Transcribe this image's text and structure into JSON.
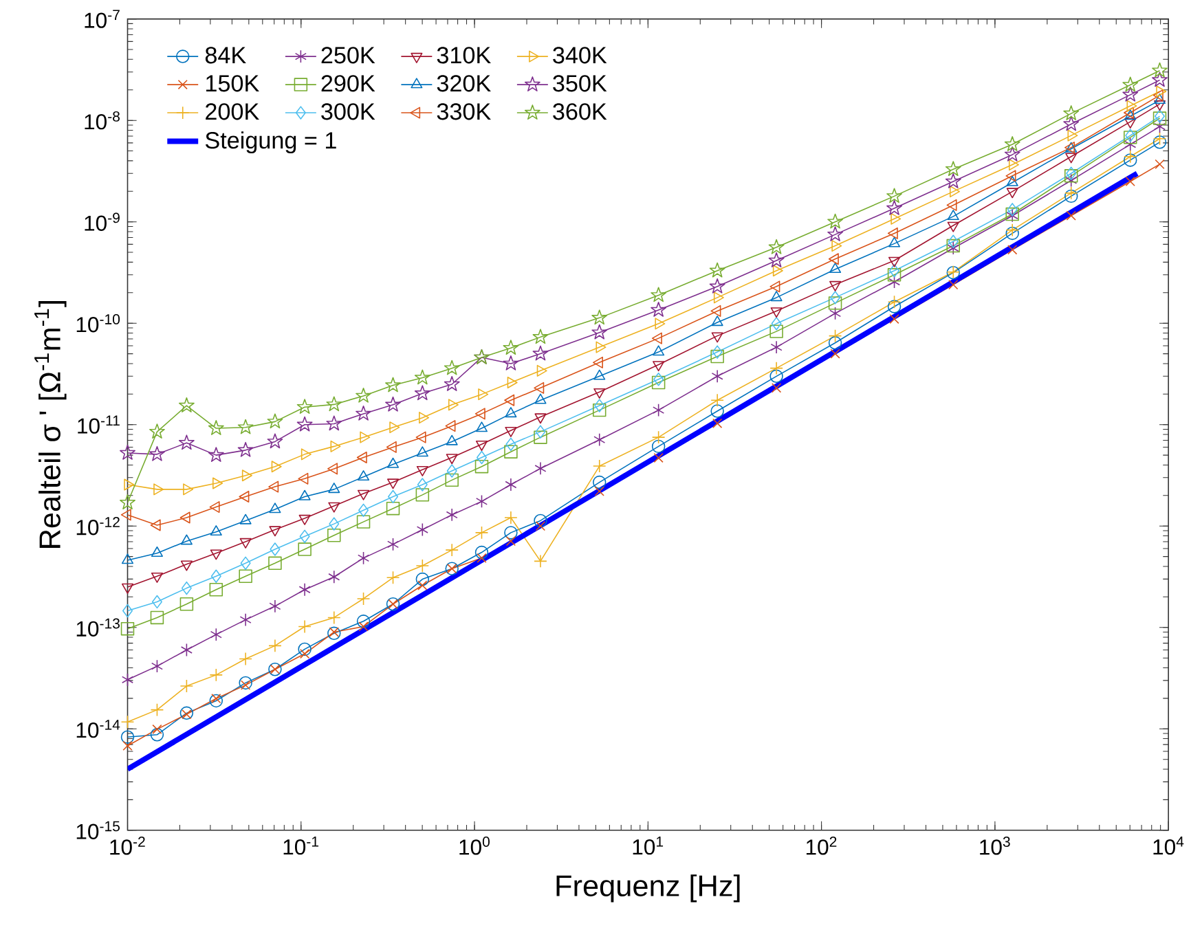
{
  "chart_data": {
    "type": "line",
    "xlabel": "Frequenz [Hz]",
    "ylabel": "Realteil σ ' [Ω$^{-1}$m$^{-1}$]",
    "log": "xy",
    "legend": "top left",
    "grid": false,
    "xlim": [
      0.01,
      10000
    ],
    "ylim": [
      1e-15,
      1e-07
    ],
    "xticks": [
      {
        "value": 0.01,
        "label": "10$^{-2}$"
      },
      {
        "value": 0.1,
        "label": "10$^{-1}$"
      },
      {
        "value": 1,
        "label": "10$^{0}$"
      },
      {
        "value": 10,
        "label": "10$^{1}$"
      },
      {
        "value": 100,
        "label": "10$^{2}$"
      },
      {
        "value": 1000,
        "label": "10$^{3}$"
      },
      {
        "value": 10000,
        "label": "10$^{4}$"
      }
    ],
    "yticks": [
      {
        "value": 1e-15,
        "label": "10$^{-15}$"
      },
      {
        "value": 1e-14,
        "label": "10$^{-14}$"
      },
      {
        "value": 1e-13,
        "label": "10$^{-13}$"
      },
      {
        "value": 1e-12,
        "label": "10$^{-12}$"
      },
      {
        "value": 1e-11,
        "label": "10$^{-11}$"
      },
      {
        "value": 1e-10,
        "label": "10$^{-10}$"
      },
      {
        "value": 1e-09,
        "label": "10$^{-9}$"
      },
      {
        "value": 1e-08,
        "label": "10$^{-8}$"
      },
      {
        "value": 1e-07,
        "label": "10$^{-7}$"
      }
    ],
    "x": [
      0.01,
      0.0148,
      0.0219,
      0.0324,
      0.0479,
      0.0708,
      0.105,
      0.155,
      0.229,
      0.339,
      0.501,
      0.741,
      1.1,
      1.62,
      2.4,
      5.25,
      11.5,
      25.1,
      55.0,
      120,
      263,
      575,
      1260,
      2750,
      6030,
      8910
    ],
    "series": [
      {
        "name": "84K",
        "color": "#0072bd",
        "marker": "circle",
        "values": [
          8.3e-15,
          8.75e-15,
          1.43e-14,
          1.89e-14,
          2.84e-14,
          3.86e-14,
          6.1e-14,
          8.75e-14,
          1.15e-13,
          1.7e-13,
          2.99e-13,
          3.8e-13,
          5.5e-13,
          8.6e-13,
          1.13e-12,
          2.7e-12,
          6.1e-12,
          1.36e-11,
          3e-11,
          6.4e-11,
          1.46e-10,
          3.15e-10,
          7.7e-10,
          1.79e-09,
          4.06e-09,
          6.1e-09
        ]
      },
      {
        "name": "150K",
        "color": "#d95319",
        "marker": "cross",
        "values": [
          6.8e-15,
          9.9e-15,
          1.39e-14,
          1.99e-14,
          2.7e-14,
          3.86e-14,
          5.5e-14,
          9e-14,
          1.02e-13,
          1.7e-13,
          2.6e-13,
          3.8e-13,
          4.83e-13,
          7.1e-13,
          1e-12,
          2.2e-12,
          4.7e-12,
          1.03e-11,
          2.3e-11,
          5e-11,
          1.1e-10,
          2.4e-10,
          5.3e-10,
          1.15e-09,
          2.5e-09,
          3.7e-09
        ]
      },
      {
        "name": "200K",
        "color": "#edb120",
        "marker": "plus",
        "values": [
          1.17e-14,
          1.54e-14,
          2.64e-14,
          3.4e-14,
          4.9e-14,
          6.6e-14,
          1.02e-13,
          1.25e-13,
          1.92e-13,
          3.1e-13,
          4.06e-13,
          5.8e-13,
          8.6e-13,
          1.21e-12,
          4.5e-13,
          3.9e-12,
          7.5e-12,
          1.74e-11,
          3.6e-11,
          7.5e-11,
          1.62e-10,
          3.2e-10,
          8.3e-10,
          1.92e-09,
          4.4e-09,
          6.6e-09
        ]
      },
      {
        "name": "250K",
        "color": "#7e2f8e",
        "marker": "cross",
        "values": [
          3.05e-14,
          4.15e-14,
          6e-14,
          8.5e-14,
          1.19e-13,
          1.62e-13,
          2.36e-13,
          3.15e-13,
          4.83e-13,
          6.6e-13,
          9.2e-13,
          1.29e-12,
          1.75e-12,
          2.56e-12,
          3.7e-12,
          7.1e-12,
          1.39e-11,
          3e-11,
          5.8e-11,
          1.25e-10,
          2.56e-10,
          5.5e-10,
          1.15e-09,
          2.56e-09,
          5.8e-09,
          8.7e-09
        ]
      },
      {
        "name": "290K",
        "color": "#77ac30",
        "marker": "square",
        "values": [
          9.7e-14,
          1.25e-13,
          1.7e-13,
          2.36e-13,
          3.2e-13,
          4.3e-13,
          5.9e-13,
          8.1e-13,
          1.1e-12,
          1.49e-12,
          2.03e-12,
          2.84e-12,
          3.86e-12,
          5.4e-12,
          7.5e-12,
          1.39e-11,
          2.6e-11,
          4.7e-11,
          8.3e-11,
          1.58e-10,
          3e-10,
          5.8e-10,
          1.19e-09,
          2.84e-09,
          6.8e-09,
          1.05e-08
        ]
      },
      {
        "name": "300K",
        "color": "#4dbeee",
        "marker": "diamond",
        "values": [
          1.46e-13,
          1.79e-13,
          2.44e-13,
          3.2e-13,
          4.3e-13,
          5.9e-13,
          7.9e-13,
          1.05e-12,
          1.43e-12,
          1.95e-12,
          2.56e-12,
          3.5e-12,
          4.74e-12,
          6.4e-12,
          8.5e-12,
          1.54e-11,
          2.8e-11,
          5.2e-11,
          9.9e-11,
          1.79e-10,
          3.3e-10,
          6.4e-10,
          1.32e-09,
          3e-09,
          7.1e-09,
          1.1e-08
        ]
      },
      {
        "name": "310K",
        "color": "#a2142f",
        "marker": "triangle-down",
        "values": [
          2.5e-13,
          3.2e-13,
          4.2e-13,
          5.4e-13,
          7e-13,
          9.2e-13,
          1.19e-12,
          1.58e-12,
          2.09e-12,
          2.7e-12,
          3.6e-12,
          4.74e-12,
          6.4e-12,
          8.75e-12,
          1.19e-11,
          2.1e-11,
          3.9e-11,
          7.5e-11,
          1.32e-10,
          2.4e-10,
          4.15e-10,
          9.2e-10,
          1.99e-09,
          4.4e-09,
          9.7e-09,
          1.45e-08
        ]
      },
      {
        "name": "320K",
        "color": "#0072bd",
        "marker": "triangle-up",
        "values": [
          4.6e-13,
          5.4e-13,
          7.1e-13,
          8.75e-13,
          1.13e-12,
          1.46e-12,
          1.95e-12,
          2.3e-12,
          3.05e-12,
          4.06e-12,
          5.25e-12,
          6.8e-12,
          9.2e-12,
          1.28e-11,
          1.74e-11,
          3e-11,
          5.2e-11,
          1.02e-10,
          1.79e-10,
          3.4e-10,
          6.1e-10,
          1.13e-09,
          2.44e-09,
          5.25e-09,
          1.1e-08,
          1.58e-08
        ]
      },
      {
        "name": "330K",
        "color": "#d95319",
        "marker": "triangle-left",
        "values": [
          1.29e-12,
          1.02e-12,
          1.21e-12,
          1.54e-12,
          1.95e-12,
          2.44e-12,
          2.93e-12,
          3.67e-12,
          4.74e-12,
          6e-12,
          7.5e-12,
          9.7e-12,
          1.28e-11,
          1.74e-11,
          2.3e-11,
          4.1e-11,
          7.1e-11,
          1.32e-10,
          2.3e-10,
          4.3e-10,
          7.7e-10,
          1.46e-09,
          2.84e-09,
          5.4e-09,
          1.19e-08,
          1.77e-08
        ]
      },
      {
        "name": "340K",
        "color": "#edb120",
        "marker": "triangle-right",
        "values": [
          2.56e-12,
          2.3e-12,
          2.3e-12,
          2.64e-12,
          3.15e-12,
          3.86e-12,
          5.1e-12,
          6.1e-12,
          7.5e-12,
          9.4e-12,
          1.17e-11,
          1.57e-11,
          1.99e-11,
          2.6e-11,
          3.4e-11,
          5.8e-11,
          9.9e-11,
          1.79e-10,
          3.3e-10,
          5.8e-10,
          1.07e-09,
          1.99e-09,
          3.66e-09,
          7.1e-09,
          1.39e-08,
          1.93e-08
        ]
      },
      {
        "name": "350K",
        "color": "#7e2f8e",
        "marker": "star",
        "values": [
          5.25e-12,
          5.1e-12,
          6.6e-12,
          5e-12,
          5.6e-12,
          6.8e-12,
          1e-11,
          1.02e-11,
          1.28e-11,
          1.57e-11,
          2.03e-11,
          2.5e-11,
          4.6e-11,
          4e-11,
          5e-11,
          8.1e-11,
          1.35e-10,
          2.3e-10,
          4.15e-10,
          7.5e-10,
          1.36e-09,
          2.5e-09,
          4.6e-09,
          9.2e-09,
          1.79e-08,
          2.5e-08
        ]
      },
      {
        "name": "360K",
        "color": "#77ac30",
        "marker": "star",
        "values": [
          1.7e-12,
          8.5e-12,
          1.54e-11,
          9.2e-12,
          9.4e-12,
          1.07e-11,
          1.49e-11,
          1.58e-11,
          1.92e-11,
          2.44e-11,
          2.9e-11,
          3.6e-11,
          4.6e-11,
          5.7e-11,
          7.3e-11,
          1.13e-10,
          1.89e-10,
          3.3e-10,
          5.6e-10,
          1e-09,
          1.79e-09,
          3.3e-09,
          5.8e-09,
          1.17e-08,
          2.24e-08,
          3.1e-08
        ]
      },
      {
        "name": "Steigung = 1",
        "color": "#0000ff",
        "marker": "none",
        "x": [
          0.01,
          6600
        ],
        "values": [
          4e-15,
          3e-09
        ]
      }
    ]
  }
}
